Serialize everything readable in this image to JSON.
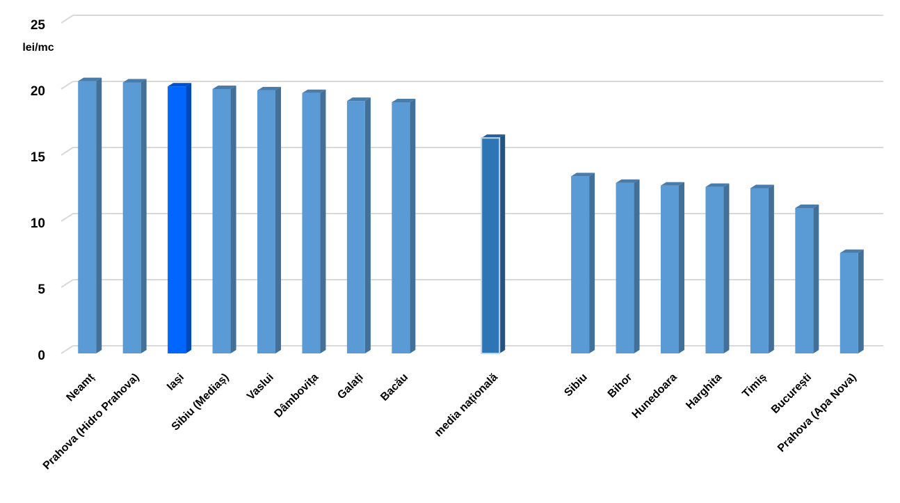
{
  "chart_data": {
    "type": "bar",
    "y_label": "lei/mc",
    "categories": [
      "Neamț",
      "Prahova (Hidro Prahova)",
      "Iași",
      "Sibiu (Mediaș)",
      "Vaslui",
      "Dâmbovița",
      "Galați",
      "Bacău",
      null,
      "media națională",
      null,
      "Sibiu",
      "Bihor",
      "Hunedoara",
      "Harghita",
      "Timiș",
      "București",
      "Prahova (Apa Nova)"
    ],
    "values": [
      20.6,
      20.5,
      20.2,
      20.0,
      19.9,
      19.7,
      19.1,
      19.0,
      null,
      16.3,
      null,
      13.4,
      12.9,
      12.7,
      12.6,
      12.5,
      11.0,
      7.6
    ],
    "colors": [
      "#5b9bd5",
      "#5b9bd5",
      "#0066ff",
      "#5b9bd5",
      "#5b9bd5",
      "#5b9bd5",
      "#5b9bd5",
      "#5b9bd5",
      null,
      "#2e75b6",
      null,
      "#5b9bd5",
      "#5b9bd5",
      "#5b9bd5",
      "#5b9bd5",
      "#5b9bd5",
      "#5b9bd5",
      "#5b9bd5"
    ],
    "ylim": [
      0,
      25
    ],
    "yticks": [
      0,
      5,
      10,
      15,
      20,
      25
    ],
    "grid": true
  }
}
